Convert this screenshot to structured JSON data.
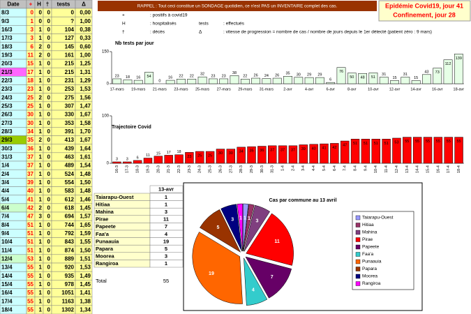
{
  "left_table": {
    "header": [
      "Date",
      "+",
      "H",
      "†",
      "tests",
      "Δ"
    ],
    "rows": [
      [
        "8/3",
        0,
        0,
        0,
        0,
        "0,00"
      ],
      [
        "9/3",
        1,
        0,
        0,
        "?",
        "1,00"
      ],
      [
        "16/3",
        3,
        1,
        0,
        104,
        "0,38"
      ],
      [
        "17/3",
        3,
        1,
        0,
        127,
        "0,33"
      ],
      [
        "18/3",
        6,
        2,
        0,
        145,
        "0,60"
      ],
      [
        "19/3",
        11,
        2,
        0,
        161,
        "1,00"
      ],
      [
        "20/3",
        15,
        1,
        0,
        215,
        "1,25"
      ],
      [
        "21/3",
        17,
        1,
        0,
        215,
        "1,31"
      ],
      [
        "22/3",
        18,
        1,
        0,
        231,
        "1,29"
      ],
      [
        "23/3",
        23,
        1,
        0,
        253,
        "1,53"
      ],
      [
        "24/3",
        25,
        2,
        0,
        275,
        "1,56"
      ],
      [
        "25/3",
        25,
        1,
        0,
        307,
        "1,47"
      ],
      [
        "26/3",
        30,
        1,
        0,
        330,
        "1,67"
      ],
      [
        "27/3",
        30,
        1,
        0,
        353,
        "1,58"
      ],
      [
        "28/3",
        34,
        1,
        0,
        391,
        "1,70"
      ],
      [
        "29/3",
        35,
        2,
        0,
        413,
        "1,67"
      ],
      [
        "30/3",
        36,
        1,
        0,
        439,
        "1,64"
      ],
      [
        "31/3",
        37,
        1,
        0,
        463,
        "1,61"
      ],
      [
        "1/4",
        37,
        1,
        0,
        489,
        "1,54"
      ],
      [
        "2/4",
        37,
        1,
        0,
        524,
        "1,48"
      ],
      [
        "3/4",
        39,
        1,
        0,
        554,
        "1,50"
      ],
      [
        "4/4",
        40,
        1,
        0,
        583,
        "1,48"
      ],
      [
        "5/4",
        41,
        1,
        0,
        612,
        "1,46"
      ],
      [
        "6/4",
        42,
        2,
        0,
        618,
        "1,45"
      ],
      [
        "7/4",
        47,
        3,
        0,
        694,
        "1,57"
      ],
      [
        "8/4",
        51,
        1,
        0,
        744,
        "1,65"
      ],
      [
        "9/4",
        51,
        1,
        0,
        792,
        "1,59"
      ],
      [
        "10/4",
        51,
        1,
        0,
        843,
        "1,55"
      ],
      [
        "11/4",
        51,
        1,
        0,
        874,
        "1,50"
      ],
      [
        "12/4",
        53,
        1,
        0,
        889,
        "1,51"
      ],
      [
        "13/4",
        55,
        1,
        0,
        920,
        "1,53"
      ],
      [
        "14/4",
        55,
        1,
        0,
        935,
        "1,49"
      ],
      [
        "15/4",
        55,
        1,
        0,
        978,
        "1,45"
      ],
      [
        "16/4",
        55,
        1,
        0,
        1051,
        "1,41"
      ],
      [
        "17/4",
        55,
        1,
        0,
        1163,
        "1,38"
      ],
      [
        "18/4",
        55,
        1,
        0,
        1302,
        "1,34"
      ]
    ]
  },
  "banner": {
    "text": "RAPPEL : Tout ceci constitue un SONDAGE quotidien, ce n'est PAS un INVENTAIRE complet des cas.",
    "status_1": "Epidémie Covid19, jour 41",
    "status_2": "Confinement, jour 28"
  },
  "notes": [
    {
      "symbol": "+",
      "text": ": positifs à covid19"
    },
    {
      "symbol": "H",
      "text": ": hospitalisés"
    },
    {
      "symbol": "tests",
      "text": ": effectués"
    },
    {
      "symbol": "†",
      "text": ": décès"
    },
    {
      "symbol": "Δ",
      "text": ": vitesse de progression = nombre de cas / nombre de jours depuis le 1er détecté (patient zéro : 9 mars)"
    }
  ],
  "chart_data": [
    {
      "type": "bar",
      "title": "Nb tests par jour",
      "color": "#e6ffe6",
      "categories": [
        "17-mars",
        null,
        "19-mars",
        null,
        "21-mars",
        null,
        "23-mars",
        null,
        "25-mars",
        null,
        "27-mars",
        null,
        "29-mars",
        null,
        "31-mars",
        null,
        "2-avr",
        null,
        "4-avr",
        null,
        "6-avr",
        null,
        "8-avr",
        null,
        "10-avr",
        null,
        "12-avr",
        null,
        "14-avr",
        null,
        "16-avr",
        null,
        "18-avr"
      ],
      "values": [
        23,
        18,
        16,
        54,
        0,
        16,
        22,
        22,
        32,
        23,
        23,
        38,
        22,
        26,
        24,
        26,
        35,
        30,
        29,
        29,
        6,
        76,
        50,
        48,
        51,
        31,
        15,
        31,
        15,
        43,
        73,
        112,
        139
      ],
      "ylim": [
        0,
        150
      ],
      "yticks": [
        0,
        150
      ]
    },
    {
      "type": "bar",
      "title": "Trajectoire Covid",
      "color": "#ff0000",
      "categories": [
        "16-3",
        "17-3",
        "18-3",
        "19-3",
        "20-3",
        "21-3",
        "22-3",
        "23-3",
        "24-3",
        "25-3",
        "26-3",
        "27-3",
        "28-3",
        "29-3",
        "30-3",
        "31-3",
        "1-4",
        "2-4",
        "3-4",
        "4-4",
        "5-4",
        "6-4",
        "7-4",
        "8-4",
        "9-4",
        "10-4",
        "11-4",
        "12-4",
        "13-4",
        "14-4",
        "15-4",
        "16-4",
        "17-4",
        "18-4"
      ],
      "values": [
        3,
        3,
        6,
        11,
        15,
        17,
        18,
        23,
        25,
        25,
        30,
        30,
        34,
        35,
        36,
        37,
        37,
        37,
        39,
        40,
        41,
        42,
        47,
        51,
        51,
        51,
        51,
        53,
        55,
        55,
        55,
        55,
        55,
        55
      ],
      "ylim": [
        0,
        100
      ],
      "yticks": [
        0,
        100
      ]
    },
    {
      "type": "pie",
      "title": "Cas par commune au 13 avril",
      "categories": [
        "Taiarapu-Ouest",
        "Hitiaa",
        "Mahina",
        "Pirae",
        "Papeete",
        "Faa'a",
        "Punaauia",
        "Papara",
        "Moorea",
        "Rangiroa"
      ],
      "values": [
        1,
        1,
        3,
        11,
        7,
        4,
        19,
        5,
        3,
        1
      ],
      "colors": [
        "#9999ff",
        "#993366",
        "#7f3f7f",
        "#ff0000",
        "#660066",
        "#33cccc",
        "#ff6600",
        "#993300",
        "#000080",
        "#ff00ff"
      ]
    }
  ],
  "commune_table": {
    "header": "13-avr",
    "total_label": "Total",
    "total": 55
  }
}
